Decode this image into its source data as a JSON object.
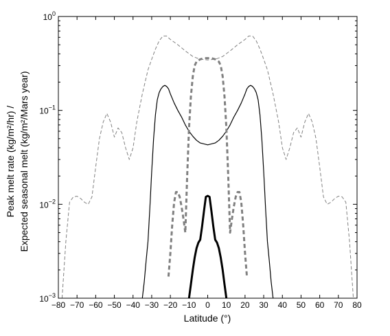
{
  "chart_data": {
    "type": "line",
    "xlabel": "Latitude (°)",
    "ylabel_line1": "Peak melt rate (kg/m²/hr) /",
    "ylabel_line2": "Expected seasonal melt (kg/m²/Mars year)",
    "xlim": [
      -80,
      80
    ],
    "ylim": [
      0.001,
      1
    ],
    "yscale": "log",
    "grid": false,
    "x_ticks": [
      -80,
      -70,
      -60,
      -50,
      -40,
      -30,
      -20,
      -10,
      0,
      10,
      20,
      30,
      40,
      50,
      60,
      70,
      80
    ],
    "y_ticks": [
      {
        "value": 0.001,
        "base": "10",
        "exp": "−3"
      },
      {
        "value": 0.01,
        "base": "10",
        "exp": "−2"
      },
      {
        "value": 0.1,
        "base": "10",
        "exp": "−1"
      },
      {
        "value": 1,
        "base": "10",
        "exp": "0"
      }
    ],
    "series": [
      {
        "style": "thin-dashed",
        "color": "#808080",
        "points": [
          [
            -78,
            0.001
          ],
          [
            -76,
            0.004
          ],
          [
            -74,
            0.0105
          ],
          [
            -72,
            0.012
          ],
          [
            -70,
            0.0122
          ],
          [
            -68,
            0.0115
          ],
          [
            -66,
            0.0105
          ],
          [
            -64,
            0.01
          ],
          [
            -62,
            0.012
          ],
          [
            -60,
            0.025
          ],
          [
            -58,
            0.05
          ],
          [
            -56,
            0.075
          ],
          [
            -54,
            0.093
          ],
          [
            -52,
            0.075
          ],
          [
            -50,
            0.052
          ],
          [
            -48,
            0.065
          ],
          [
            -46,
            0.058
          ],
          [
            -44,
            0.04
          ],
          [
            -42,
            0.03
          ],
          [
            -40,
            0.04
          ],
          [
            -38,
            0.075
          ],
          [
            -35,
            0.15
          ],
          [
            -32,
            0.27
          ],
          [
            -30,
            0.35
          ],
          [
            -28,
            0.45
          ],
          [
            -26,
            0.55
          ],
          [
            -24,
            0.62
          ],
          [
            -22,
            0.62
          ],
          [
            -20,
            0.57
          ],
          [
            -16,
            0.5
          ],
          [
            -12,
            0.43
          ],
          [
            -8,
            0.375
          ],
          [
            -4,
            0.35
          ],
          [
            0,
            0.345
          ],
          [
            4,
            0.35
          ],
          [
            8,
            0.375
          ],
          [
            12,
            0.43
          ],
          [
            16,
            0.5
          ],
          [
            20,
            0.57
          ],
          [
            22,
            0.62
          ],
          [
            24,
            0.62
          ],
          [
            26,
            0.55
          ],
          [
            28,
            0.45
          ],
          [
            30,
            0.35
          ],
          [
            32,
            0.27
          ],
          [
            35,
            0.15
          ],
          [
            38,
            0.075
          ],
          [
            40,
            0.04
          ],
          [
            42,
            0.03
          ],
          [
            44,
            0.04
          ],
          [
            46,
            0.058
          ],
          [
            48,
            0.065
          ],
          [
            50,
            0.052
          ],
          [
            52,
            0.075
          ],
          [
            54,
            0.093
          ],
          [
            56,
            0.075
          ],
          [
            58,
            0.05
          ],
          [
            60,
            0.025
          ],
          [
            62,
            0.012
          ],
          [
            64,
            0.01
          ],
          [
            66,
            0.0105
          ],
          [
            68,
            0.0115
          ],
          [
            70,
            0.0122
          ],
          [
            72,
            0.012
          ],
          [
            74,
            0.0105
          ],
          [
            76,
            0.004
          ],
          [
            78,
            0.001
          ]
        ]
      },
      {
        "style": "thin-solid",
        "color": "#000000",
        "points": [
          [
            -35,
            0.001
          ],
          [
            -34,
            0.0015
          ],
          [
            -33,
            0.0025
          ],
          [
            -32,
            0.004
          ],
          [
            -31,
            0.009
          ],
          [
            -30,
            0.022
          ],
          [
            -29,
            0.05
          ],
          [
            -28,
            0.09
          ],
          [
            -27,
            0.13
          ],
          [
            -26,
            0.155
          ],
          [
            -25,
            0.17
          ],
          [
            -24,
            0.18
          ],
          [
            -23,
            0.185
          ],
          [
            -22,
            0.18
          ],
          [
            -21,
            0.17
          ],
          [
            -20,
            0.15
          ],
          [
            -18,
            0.12
          ],
          [
            -16,
            0.1
          ],
          [
            -14,
            0.085
          ],
          [
            -12,
            0.07
          ],
          [
            -10,
            0.06
          ],
          [
            -8,
            0.053
          ],
          [
            -6,
            0.048
          ],
          [
            -4,
            0.045
          ],
          [
            -2,
            0.044
          ],
          [
            0,
            0.043
          ],
          [
            2,
            0.044
          ],
          [
            4,
            0.045
          ],
          [
            6,
            0.048
          ],
          [
            8,
            0.053
          ],
          [
            10,
            0.06
          ],
          [
            12,
            0.07
          ],
          [
            14,
            0.085
          ],
          [
            16,
            0.1
          ],
          [
            18,
            0.12
          ],
          [
            20,
            0.15
          ],
          [
            21,
            0.17
          ],
          [
            22,
            0.18
          ],
          [
            23,
            0.185
          ],
          [
            24,
            0.18
          ],
          [
            25,
            0.17
          ],
          [
            26,
            0.155
          ],
          [
            27,
            0.13
          ],
          [
            28,
            0.09
          ],
          [
            29,
            0.05
          ],
          [
            30,
            0.022
          ],
          [
            31,
            0.009
          ],
          [
            32,
            0.004
          ],
          [
            33,
            0.0025
          ],
          [
            34,
            0.0015
          ],
          [
            35,
            0.001
          ]
        ]
      },
      {
        "style": "thick-dashed",
        "color": "#808080",
        "points": [
          [
            -21,
            0.0017
          ],
          [
            -20,
            0.003
          ],
          [
            -19,
            0.006
          ],
          [
            -18,
            0.0105
          ],
          [
            -17,
            0.0135
          ],
          [
            -16,
            0.0135
          ],
          [
            -15,
            0.012
          ],
          [
            -14,
            0.0095
          ],
          [
            -13,
            0.007
          ],
          [
            -12,
            0.005
          ],
          [
            -11,
            0.02
          ],
          [
            -10,
            0.065
          ],
          [
            -9,
            0.14
          ],
          [
            -8,
            0.23
          ],
          [
            -7,
            0.3
          ],
          [
            -6,
            0.33
          ],
          [
            -4,
            0.35
          ],
          [
            -2,
            0.36
          ],
          [
            0,
            0.36
          ],
          [
            2,
            0.36
          ],
          [
            4,
            0.35
          ],
          [
            6,
            0.33
          ],
          [
            7,
            0.3
          ],
          [
            8,
            0.23
          ],
          [
            9,
            0.14
          ],
          [
            10,
            0.065
          ],
          [
            11,
            0.02
          ],
          [
            12,
            0.005
          ],
          [
            13,
            0.007
          ],
          [
            14,
            0.0095
          ],
          [
            15,
            0.012
          ],
          [
            16,
            0.0135
          ],
          [
            17,
            0.0135
          ],
          [
            18,
            0.0105
          ],
          [
            19,
            0.006
          ],
          [
            20,
            0.003
          ],
          [
            21,
            0.0017
          ]
        ]
      },
      {
        "style": "thick-solid",
        "color": "#000000",
        "points": [
          [
            -10,
            0.001
          ],
          [
            -9,
            0.0014
          ],
          [
            -8,
            0.002
          ],
          [
            -7,
            0.0027
          ],
          [
            -6,
            0.0034
          ],
          [
            -5,
            0.0039
          ],
          [
            -4,
            0.0042
          ],
          [
            -3,
            0.0058
          ],
          [
            -2,
            0.0085
          ],
          [
            -1,
            0.012
          ],
          [
            0,
            0.0123
          ],
          [
            1,
            0.012
          ],
          [
            2,
            0.0085
          ],
          [
            3,
            0.0058
          ],
          [
            4,
            0.0042
          ],
          [
            5,
            0.0039
          ],
          [
            6,
            0.0034
          ],
          [
            7,
            0.0027
          ],
          [
            8,
            0.002
          ],
          [
            9,
            0.0014
          ],
          [
            10,
            0.001
          ]
        ]
      }
    ]
  }
}
